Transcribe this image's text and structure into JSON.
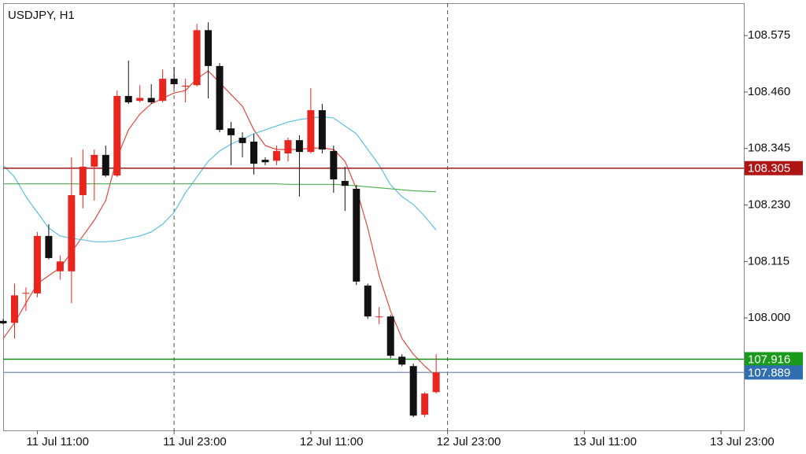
{
  "chart_data": {
    "type": "candlestick",
    "title": "USDJPY, H1",
    "x": [
      "11 Jul 08:00",
      "11 Jul 09:00",
      "11 Jul 10:00",
      "11 Jul 11:00",
      "11 Jul 12:00",
      "11 Jul 13:00",
      "11 Jul 14:00",
      "11 Jul 15:00",
      "11 Jul 16:00",
      "11 Jul 17:00",
      "11 Jul 18:00",
      "11 Jul 19:00",
      "11 Jul 20:00",
      "11 Jul 21:00",
      "11 Jul 22:00",
      "11 Jul 23:00",
      "12 Jul 00:00",
      "12 Jul 01:00",
      "12 Jul 02:00",
      "12 Jul 03:00",
      "12 Jul 04:00",
      "12 Jul 05:00",
      "12 Jul 06:00",
      "12 Jul 07:00",
      "12 Jul 08:00",
      "12 Jul 09:00",
      "12 Jul 10:00",
      "12 Jul 11:00",
      "12 Jul 12:00",
      "12 Jul 13:00",
      "12 Jul 14:00",
      "12 Jul 15:00",
      "12 Jul 16:00",
      "12 Jul 17:00",
      "12 Jul 18:00",
      "12 Jul 19:00",
      "12 Jul 20:00",
      "12 Jul 21:00",
      "12 Jul 22:00"
    ],
    "open": [
      107.994,
      107.99,
      108.05,
      108.05,
      108.167,
      108.095,
      108.095,
      108.25,
      108.308,
      108.332,
      108.29,
      108.452,
      108.442,
      108.448,
      108.442,
      108.487,
      108.471,
      108.474,
      108.586,
      108.513,
      108.386,
      108.367,
      108.359,
      108.322,
      108.32,
      108.335,
      108.362,
      108.338,
      108.423,
      108.34,
      108.279,
      108.263,
      108.066,
      108.003,
      108.003,
      107.921,
      107.902,
      107.803,
      107.849
    ],
    "high": [
      107.998,
      108.07,
      108.062,
      108.175,
      108.191,
      108.127,
      108.327,
      108.343,
      108.343,
      108.351,
      108.463,
      108.524,
      108.474,
      108.476,
      108.506,
      108.511,
      108.487,
      108.599,
      108.602,
      108.519,
      108.399,
      108.378,
      108.375,
      108.327,
      108.351,
      108.367,
      108.372,
      108.468,
      108.436,
      108.351,
      108.308,
      108.271,
      108.07,
      108.022,
      108.006,
      107.926,
      107.907,
      107.849,
      107.926
    ],
    "low": [
      107.987,
      107.958,
      108.014,
      108.042,
      108.119,
      108.078,
      108.03,
      108.223,
      108.239,
      108.287,
      108.287,
      108.436,
      108.439,
      108.436,
      108.439,
      108.468,
      108.439,
      108.471,
      108.447,
      108.378,
      108.311,
      108.327,
      108.292,
      108.311,
      108.311,
      108.319,
      108.247,
      108.335,
      108.335,
      108.255,
      108.218,
      108.067,
      107.998,
      107.987,
      107.918,
      107.902,
      107.798,
      107.798,
      107.846
    ],
    "close": [
      107.989,
      108.046,
      108.051,
      108.167,
      108.122,
      108.115,
      108.25,
      108.308,
      108.332,
      108.29,
      108.452,
      108.439,
      108.448,
      108.439,
      108.487,
      108.476,
      108.473,
      108.586,
      108.513,
      108.383,
      108.372,
      108.356,
      108.314,
      108.317,
      108.34,
      108.362,
      108.338,
      108.423,
      108.343,
      108.282,
      108.269,
      108.074,
      108.003,
      108.003,
      107.923,
      107.905,
      107.801,
      107.846,
      107.889
    ],
    "up_color": "#e8251e",
    "down_color": "#111111",
    "lines": [
      {
        "color": "#e8473f",
        "values": [
          107.958,
          107.99,
          108.03,
          108.07,
          108.086,
          108.102,
          108.134,
          108.167,
          108.199,
          108.239,
          108.327,
          108.383,
          108.415,
          108.436,
          108.447,
          108.458,
          108.463,
          108.487,
          108.503,
          108.479,
          108.455,
          108.431,
          108.383,
          108.351,
          108.343,
          108.343,
          108.343,
          108.346,
          108.346,
          108.343,
          108.319,
          108.263,
          108.183,
          108.086,
          108.014,
          107.958,
          107.926,
          107.902,
          107.881
        ]
      },
      {
        "color": "#5bbfe0",
        "values": [
          108.311,
          108.287,
          108.247,
          108.215,
          108.183,
          108.167,
          108.162,
          108.159,
          108.155,
          108.155,
          108.157,
          108.162,
          108.167,
          108.175,
          108.191,
          108.215,
          108.255,
          108.287,
          108.319,
          108.34,
          108.354,
          108.364,
          108.375,
          108.383,
          108.391,
          108.399,
          108.404,
          108.407,
          108.41,
          108.407,
          108.391,
          108.375,
          108.343,
          108.311,
          108.271,
          108.247,
          108.231,
          108.207,
          108.179
        ]
      },
      {
        "color": "#4caf50",
        "values": [
          108.273,
          108.273,
          108.273,
          108.273,
          108.273,
          108.273,
          108.273,
          108.273,
          108.273,
          108.273,
          108.273,
          108.273,
          108.273,
          108.273,
          108.273,
          108.273,
          108.273,
          108.273,
          108.273,
          108.273,
          108.273,
          108.273,
          108.273,
          108.273,
          108.273,
          108.272,
          108.272,
          108.272,
          108.272,
          108.272,
          108.271,
          108.269,
          108.267,
          108.265,
          108.263,
          108.261,
          108.259,
          108.258,
          108.257
        ]
      }
    ],
    "hlines": [
      {
        "value": 108.305,
        "color": "#a01a1a",
        "label_color": "#b01515"
      },
      {
        "value": 107.916,
        "color": "#168a16",
        "label_color": "#1a9a1a"
      },
      {
        "value": 107.889,
        "color": "#8a9ab0",
        "label_color": "#2f6fb0"
      }
    ],
    "vlines": [
      "11 Jul 23:00",
      "12 Jul 23:00"
    ],
    "xlim": [
      "11 Jul 08:00",
      "14 Jul 01:00"
    ],
    "xticks": [
      "11 Jul 11:00",
      "11 Jul 23:00",
      "12 Jul 11:00",
      "12 Jul 23:00",
      "13 Jul 11:00",
      "13 Jul 23:00"
    ],
    "ylim": [
      107.771,
      108.641
    ],
    "yticks": [
      108.575,
      {
        "value": 108.46,
        "label": "108.460"
      },
      108.345,
      {
        "value": 108.23,
        "label": "108.230"
      },
      108.115,
      {
        "value": 108,
        "label": "108.000"
      }
    ]
  }
}
